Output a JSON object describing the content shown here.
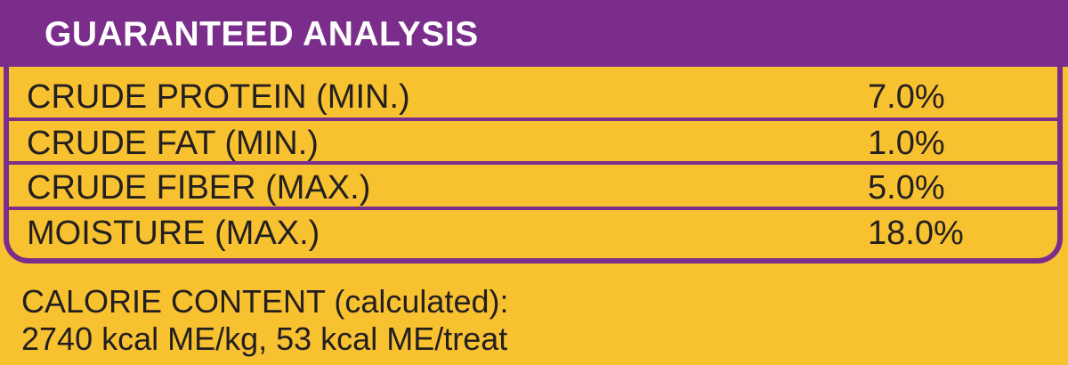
{
  "header": {
    "title": "GUARANTEED ANALYSIS"
  },
  "analysis": {
    "rows": [
      {
        "label": "CRUDE PROTEIN (MIN.)",
        "value": "7.0%"
      },
      {
        "label": "CRUDE FAT (MIN.)",
        "value": "1.0%"
      },
      {
        "label": "CRUDE FIBER (MAX.)",
        "value": "5.0%"
      },
      {
        "label": "MOISTURE (MAX.)",
        "value": "18.0%"
      }
    ]
  },
  "calorie": {
    "line1": "CALORIE CONTENT (calculated):",
    "line2": "2740 kcal ME/kg, 53 kcal ME/treat"
  },
  "colors": {
    "background": "#f8c130",
    "accent_purple": "#7b2d8b",
    "text": "#231f20",
    "header_text": "#ffffff"
  }
}
